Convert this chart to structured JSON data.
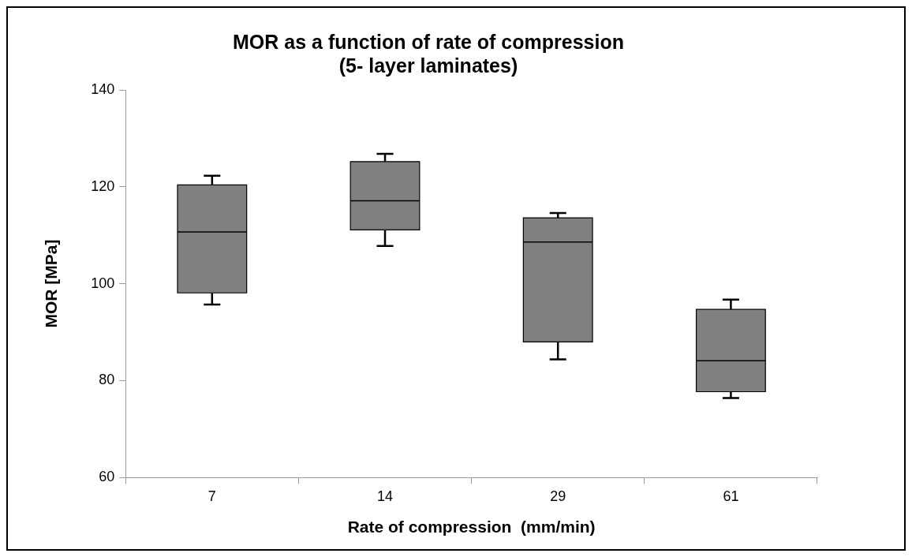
{
  "chart_data": {
    "type": "box",
    "title": "MOR as a function of rate of compression\n(5- layer laminates)",
    "xlabel": "Rate of compression  (mm/min)",
    "ylabel": "MOR [MPa]",
    "categories": [
      "7",
      "14",
      "29",
      "61"
    ],
    "color": "#808080",
    "ylim": [
      60,
      140
    ],
    "yticks": [
      60,
      80,
      100,
      120,
      140
    ],
    "grid": false,
    "legend": false,
    "boxes": [
      {
        "low": 95.7,
        "q1": 98.1,
        "median": 110.7,
        "q3": 120.4,
        "high": 122.3
      },
      {
        "low": 107.8,
        "q1": 111.1,
        "median": 117.1,
        "q3": 125.2,
        "high": 126.8
      },
      {
        "low": 84.4,
        "q1": 88.0,
        "median": 108.6,
        "q3": 113.6,
        "high": 114.6
      },
      {
        "low": 76.4,
        "q1": 77.7,
        "median": 84.1,
        "q3": 94.7,
        "high": 96.7
      }
    ]
  }
}
